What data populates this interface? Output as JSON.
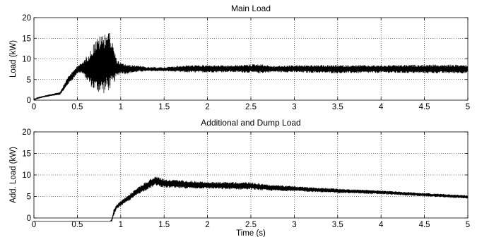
{
  "chart_data": [
    {
      "type": "line",
      "title": "Main Load",
      "xlabel": "",
      "ylabel": "Load (kW)",
      "xlim": [
        0,
        5
      ],
      "ylim": [
        0,
        20
      ],
      "xticks": [
        "0",
        "0.5",
        "1",
        "1.5",
        "2",
        "2.5",
        "3",
        "3.5",
        "4",
        "4.5",
        "5"
      ],
      "yticks": [
        "0",
        "5",
        "10",
        "15",
        "20"
      ],
      "grid": true,
      "series_color": "#000000",
      "envelope": {
        "x": [
          0,
          0.05,
          0.1,
          0.2,
          0.3,
          0.35,
          0.4,
          0.45,
          0.5,
          0.55,
          0.6,
          0.65,
          0.7,
          0.75,
          0.8,
          0.85,
          0.9,
          0.95,
          1.0,
          1.05,
          1.1,
          1.2,
          1.3,
          1.4,
          1.5,
          1.75,
          2.0,
          2.25,
          2.5,
          2.6,
          2.75,
          3.0,
          3.5,
          4.0,
          4.5,
          5.0
        ],
        "lo": [
          0,
          0.3,
          0.6,
          1.0,
          1.3,
          2.5,
          4.0,
          5.0,
          6.5,
          6.5,
          5.0,
          3.5,
          2.0,
          1.8,
          1.5,
          2.0,
          3.0,
          5.5,
          6.5,
          6.3,
          6.5,
          6.8,
          7.0,
          7.0,
          7.0,
          6.7,
          6.7,
          6.8,
          6.6,
          6.5,
          6.8,
          6.7,
          6.5,
          6.6,
          6.5,
          6.5
        ],
        "hi": [
          0.3,
          0.8,
          1.0,
          1.5,
          2.0,
          4.0,
          6.0,
          7.0,
          8.5,
          9.0,
          10.5,
          12.0,
          14.5,
          15.5,
          16.0,
          17.5,
          15.0,
          10.0,
          9.0,
          8.8,
          8.5,
          8.5,
          8.0,
          8.0,
          8.0,
          8.5,
          8.5,
          8.4,
          8.7,
          8.8,
          8.3,
          8.5,
          8.5,
          8.5,
          8.6,
          8.6
        ]
      }
    },
    {
      "type": "line",
      "title": "Additional and Dump Load",
      "xlabel": "Time (s)",
      "ylabel": "Add. Load (kW)",
      "xlim": [
        0,
        5
      ],
      "ylim": [
        0,
        20
      ],
      "xticks": [
        "0",
        "0.5",
        "1",
        "1.5",
        "2",
        "2.5",
        "3",
        "3.5",
        "4",
        "4.5",
        "5"
      ],
      "yticks": [
        "0",
        "5",
        "10",
        "15",
        "20"
      ],
      "grid": true,
      "series_color": "#000000",
      "envelope": {
        "x": [
          0,
          0.88,
          0.9,
          0.92,
          0.95,
          1.0,
          1.1,
          1.2,
          1.3,
          1.4,
          1.45,
          1.5,
          1.75,
          2.0,
          2.25,
          2.5,
          2.7,
          3.0,
          3.5,
          4.0,
          4.5,
          5.0
        ],
        "lo": [
          -0.8,
          -0.8,
          -0.8,
          0.5,
          2.0,
          2.8,
          4.0,
          5.5,
          6.5,
          7.5,
          7.3,
          7.0,
          6.8,
          6.8,
          6.6,
          6.6,
          6.3,
          6.2,
          5.8,
          5.5,
          5.0,
          4.5
        ],
        "hi": [
          -0.8,
          -0.8,
          0.0,
          2.0,
          3.0,
          4.0,
          5.5,
          7.2,
          8.5,
          9.8,
          9.5,
          9.0,
          8.8,
          8.4,
          8.4,
          8.3,
          7.8,
          7.4,
          6.8,
          6.4,
          5.8,
          5.3
        ]
      }
    }
  ]
}
